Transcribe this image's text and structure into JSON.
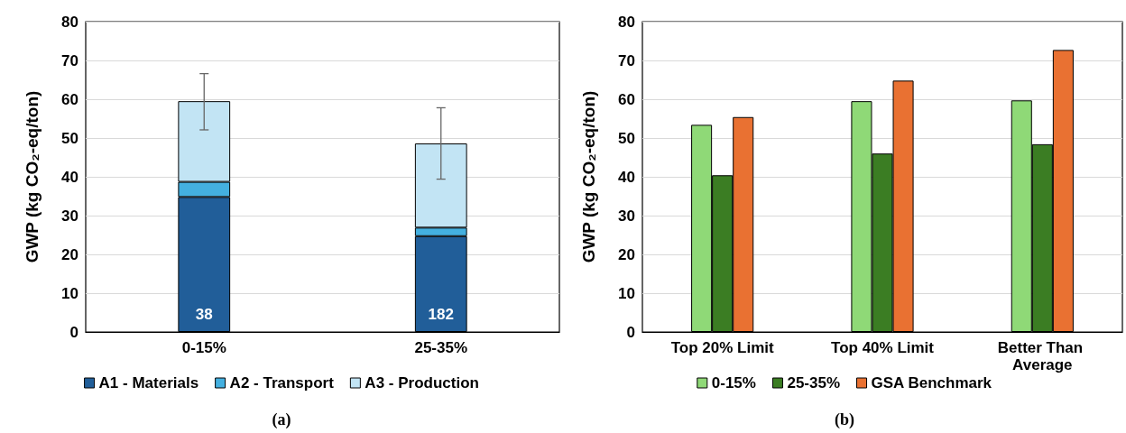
{
  "chart_data": [
    {
      "type": "bar",
      "stacked": true,
      "categories": [
        "0-15%",
        "25-35%"
      ],
      "ylabel": "GWP (kg CO₂-eq/ton)",
      "ylim": [
        0,
        80
      ],
      "yticks": [
        0,
        10,
        20,
        30,
        40,
        50,
        60,
        70,
        80
      ],
      "grid": "y",
      "legend": "bottom",
      "annotations": [
        "(a)",
        "38",
        "182"
      ],
      "series": [
        {
          "name": "A1 - Materials",
          "color": "#215e99",
          "values": [
            34.8,
            24.7
          ]
        },
        {
          "name": "A2 - Transport",
          "color": "#44b0e0",
          "values": [
            3.9,
            2.2
          ]
        },
        {
          "name": "A3 - Production",
          "color": "#c2e4f4",
          "values": [
            20.8,
            21.7
          ],
          "errors": [
            [
              52.1,
              66.6
            ],
            [
              39.4,
              57.8
            ]
          ]
        }
      ]
    },
    {
      "type": "bar",
      "categories": [
        "Top 20% Limit",
        "Top 40% Limit",
        "Better Than Average"
      ],
      "ylabel": "GWP (kg CO₂-eq/ton)",
      "ylim": [
        0,
        80
      ],
      "yticks": [
        0,
        10,
        20,
        30,
        40,
        50,
        60,
        70,
        80
      ],
      "grid": "y",
      "legend": "bottom",
      "annotations": [
        "(b)"
      ],
      "series": [
        {
          "name": "0-15%",
          "color": "#8fd977",
          "values": [
            53.4,
            59.5,
            59.7
          ]
        },
        {
          "name": "25-35%",
          "color": "#3b7d23",
          "values": [
            40.4,
            46.0,
            48.4
          ]
        },
        {
          "name": "GSA Benchmark",
          "color": "#e97132",
          "values": [
            55.4,
            64.8,
            72.7
          ]
        }
      ]
    }
  ]
}
